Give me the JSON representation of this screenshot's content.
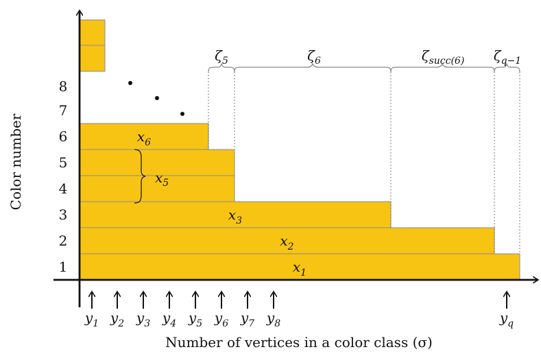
{
  "figure": {
    "y_axis_title": "Color number",
    "x_axis_title": "Number of vertices in a color class (σ)",
    "bar_color": "#f7c414",
    "bar_edge_color": "#8a8a8a",
    "color_numbers": [
      "1",
      "2",
      "3",
      "4",
      "5",
      "6",
      "7",
      "8"
    ],
    "bars": [
      {
        "id": "bar-1",
        "label": "x",
        "sub": "1"
      },
      {
        "id": "bar-2",
        "label": "x",
        "sub": "2"
      },
      {
        "id": "bar-3",
        "label": "x",
        "sub": "3"
      },
      {
        "id": "bar-4",
        "label": "",
        "sub": ""
      },
      {
        "id": "bar-5",
        "label": "",
        "sub": ""
      },
      {
        "id": "bar-6",
        "label": "x",
        "sub": "6"
      },
      {
        "id": "bar-top-a",
        "label": "",
        "sub": ""
      },
      {
        "id": "bar-top-b",
        "label": "",
        "sub": ""
      }
    ],
    "brace_label": {
      "label": "x",
      "sub": "5"
    },
    "y_markers": [
      {
        "label": "y",
        "sub": "1"
      },
      {
        "label": "y",
        "sub": "2"
      },
      {
        "label": "y",
        "sub": "3"
      },
      {
        "label": "y",
        "sub": "4"
      },
      {
        "label": "y",
        "sub": "5"
      },
      {
        "label": "y",
        "sub": "6"
      },
      {
        "label": "y",
        "sub": "7"
      },
      {
        "label": "y",
        "sub": "8"
      },
      {
        "label": "y",
        "sub": "q"
      }
    ],
    "zeta_labels": [
      {
        "label": "ζ",
        "sub": "5"
      },
      {
        "label": "ζ",
        "sub": "6"
      },
      {
        "label": "ζ",
        "sub": "succ(6)"
      },
      {
        "label": "ζ",
        "sub": "q−1"
      }
    ]
  }
}
